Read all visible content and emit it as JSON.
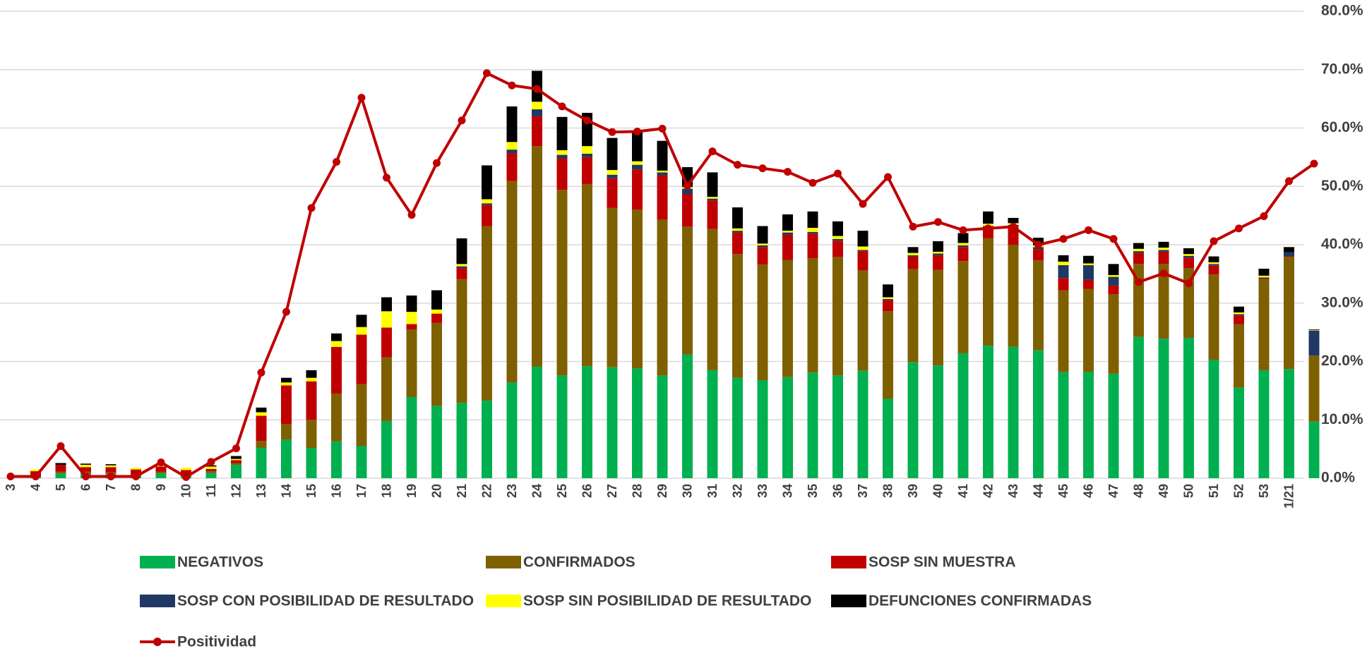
{
  "chart_data": {
    "type": "bar",
    "stacked": true,
    "categories": [
      "3",
      "4",
      "5",
      "6",
      "7",
      "8",
      "9",
      "10",
      "11",
      "12",
      "13",
      "14",
      "15",
      "16",
      "17",
      "18",
      "19",
      "20",
      "21",
      "22",
      "23",
      "24",
      "25",
      "26",
      "27",
      "28",
      "29",
      "30",
      "31",
      "32",
      "33",
      "34",
      "35",
      "36",
      "37",
      "38",
      "39",
      "40",
      "41",
      "42",
      "43",
      "44",
      "45",
      "46",
      "47",
      "48",
      "49",
      "50",
      "51",
      "52",
      "53",
      "1/21",
      null
    ],
    "ylim": [
      0,
      80
    ],
    "yticks": [
      {
        "value": 0,
        "label": "0.0%"
      },
      {
        "value": 10,
        "label": "10.0%"
      },
      {
        "value": 20,
        "label": "20.0%"
      },
      {
        "value": 30,
        "label": "30.0%"
      },
      {
        "value": 40,
        "label": "40.0%"
      },
      {
        "value": 50,
        "label": "50.0%"
      },
      {
        "value": 60,
        "label": "60.0%"
      },
      {
        "value": 70,
        "label": "70.0%"
      },
      {
        "value": 80,
        "label": "80.0%"
      }
    ],
    "grid": true,
    "series": [
      {
        "name": "NEGATIVOS",
        "type": "bar",
        "color": "#00b050",
        "values": [
          0,
          0.2,
          0.8,
          0.7,
          0.7,
          0.3,
          0.8,
          0.3,
          0.9,
          2.3,
          5.2,
          6.6,
          5.2,
          6.3,
          5.5,
          9.8,
          13.9,
          12.4,
          12.9,
          13.3,
          16.4,
          19.1,
          17.6,
          19.2,
          19.0,
          18.8,
          17.6,
          21.2,
          18.5,
          17.2,
          16.8,
          17.3,
          18.1,
          17.6,
          18.4,
          13.6,
          19.9,
          19.3,
          21.4,
          22.7,
          22.5,
          21.9,
          18.2,
          18.2,
          17.9,
          24.2,
          23.9,
          24.0,
          20.3,
          15.5,
          18.5,
          18.7,
          9.7
        ]
      },
      {
        "name": "CONFIRMADOS",
        "type": "bar",
        "color": "#7f6000",
        "values": [
          0,
          0,
          0.3,
          0.4,
          0.3,
          0.2,
          0.3,
          0.3,
          0.3,
          0.3,
          1.2,
          2.7,
          4.8,
          8.2,
          10.6,
          10.9,
          11.6,
          14.2,
          21.2,
          29.9,
          34.5,
          37.8,
          31.8,
          31.2,
          27.3,
          27.2,
          26.7,
          21.9,
          24.2,
          21.2,
          19.8,
          20.1,
          19.6,
          20.3,
          17.2,
          15.0,
          15.9,
          16.4,
          15.8,
          18.4,
          17.5,
          15.4,
          14.0,
          14.2,
          13.6,
          12.5,
          12.8,
          12.0,
          14.6,
          10.9,
          15.6,
          19.2,
          11.3
        ]
      },
      {
        "name": "SOSP SIN MUESTRA",
        "type": "bar",
        "color": "#c00000",
        "values": [
          0,
          1.0,
          1.2,
          0.8,
          0.9,
          1.0,
          0.9,
          0.8,
          0.4,
          0.5,
          4.3,
          6.6,
          6.6,
          8.0,
          8.5,
          5.1,
          0.9,
          1.6,
          1.9,
          3.6,
          4.8,
          5.1,
          5.4,
          4.6,
          5.1,
          6.9,
          7.6,
          5.6,
          4.9,
          3.7,
          3.0,
          4.3,
          4.2,
          2.8,
          3.3,
          1.9,
          2.2,
          2.5,
          2.4,
          1.8,
          3.1,
          1.9,
          2.1,
          1.6,
          1.5,
          1.9,
          2.1,
          1.8,
          1.5,
          1.5,
          0.1,
          0.1,
          0
        ]
      },
      {
        "name": "SOSP CON POSIBILIDAD DE RESULTADO",
        "type": "bar",
        "color": "#1f3864",
        "values": [
          0,
          0,
          0,
          0,
          0,
          0,
          0,
          0,
          0,
          0,
          0,
          0,
          0,
          0,
          0,
          0,
          0,
          0,
          0.3,
          0.3,
          0.6,
          1.2,
          0.6,
          0.6,
          0.6,
          0.8,
          0.5,
          0.9,
          0.3,
          0.3,
          0.3,
          0.4,
          0.3,
          0.3,
          0.2,
          0.2,
          0.2,
          0.3,
          0.3,
          0.3,
          0.3,
          0.4,
          2.2,
          2.5,
          1.5,
          0.3,
          0.3,
          0.3,
          0.3,
          0.2,
          0.2,
          0.7,
          4.3
        ]
      },
      {
        "name": "SOSP SIN POSIBILIDAD DE RESULTADO",
        "type": "bar",
        "color": "#ffff00",
        "values": [
          0,
          0.3,
          0,
          0.4,
          0.3,
          0.3,
          0.3,
          0.4,
          0.4,
          0.2,
          0.6,
          0.5,
          0.6,
          1.0,
          1.3,
          2.8,
          2.1,
          0.7,
          0.4,
          0.7,
          1.3,
          1.3,
          0.8,
          1.3,
          0.8,
          0.6,
          0.3,
          0.3,
          0.3,
          0.4,
          0.3,
          0.3,
          0.7,
          0.5,
          0.6,
          0.3,
          0.4,
          0.3,
          0.4,
          0.4,
          0.3,
          0.3,
          0.6,
          0.3,
          0.3,
          0.4,
          0.4,
          0.3,
          0.3,
          0.3,
          0.3,
          0,
          0.1
        ]
      },
      {
        "name": "DEFUNCIONES CONFIRMADAS",
        "type": "bar",
        "color": "#000000",
        "values": [
          0,
          0,
          0.3,
          0.2,
          0.2,
          0,
          0.2,
          0,
          0.2,
          0.5,
          0.8,
          0.8,
          1.3,
          1.3,
          2.1,
          2.4,
          2.8,
          3.3,
          4.4,
          5.8,
          6.1,
          5.3,
          5.7,
          5.7,
          5.5,
          5.1,
          5.1,
          3.4,
          4.2,
          3.6,
          3.0,
          2.8,
          2.8,
          2.5,
          2.7,
          2.2,
          1.0,
          1.8,
          1.7,
          2.1,
          0.9,
          1.3,
          1.1,
          1.3,
          1.9,
          1.0,
          1.0,
          1.0,
          1.0,
          1.0,
          1.2,
          0.9,
          0.1
        ]
      },
      {
        "name": "Positividad",
        "type": "line",
        "color": "#c00000",
        "values": [
          0.3,
          0.3,
          5.5,
          0.3,
          0.3,
          0.3,
          2.7,
          0.2,
          2.8,
          5.1,
          18.1,
          28.5,
          46.3,
          54.2,
          65.2,
          51.5,
          45.1,
          54.0,
          61.3,
          69.4,
          67.3,
          66.7,
          63.7,
          61.3,
          59.3,
          59.4,
          59.9,
          50.1,
          56.0,
          53.7,
          53.1,
          52.5,
          50.6,
          52.2,
          47.0,
          51.6,
          43.1,
          43.9,
          42.5,
          42.8,
          43.1,
          40.0,
          41.0,
          42.5,
          41.0,
          33.6,
          35.1,
          33.4,
          40.6,
          42.8,
          44.9,
          50.9,
          53.9
        ]
      }
    ]
  }
}
